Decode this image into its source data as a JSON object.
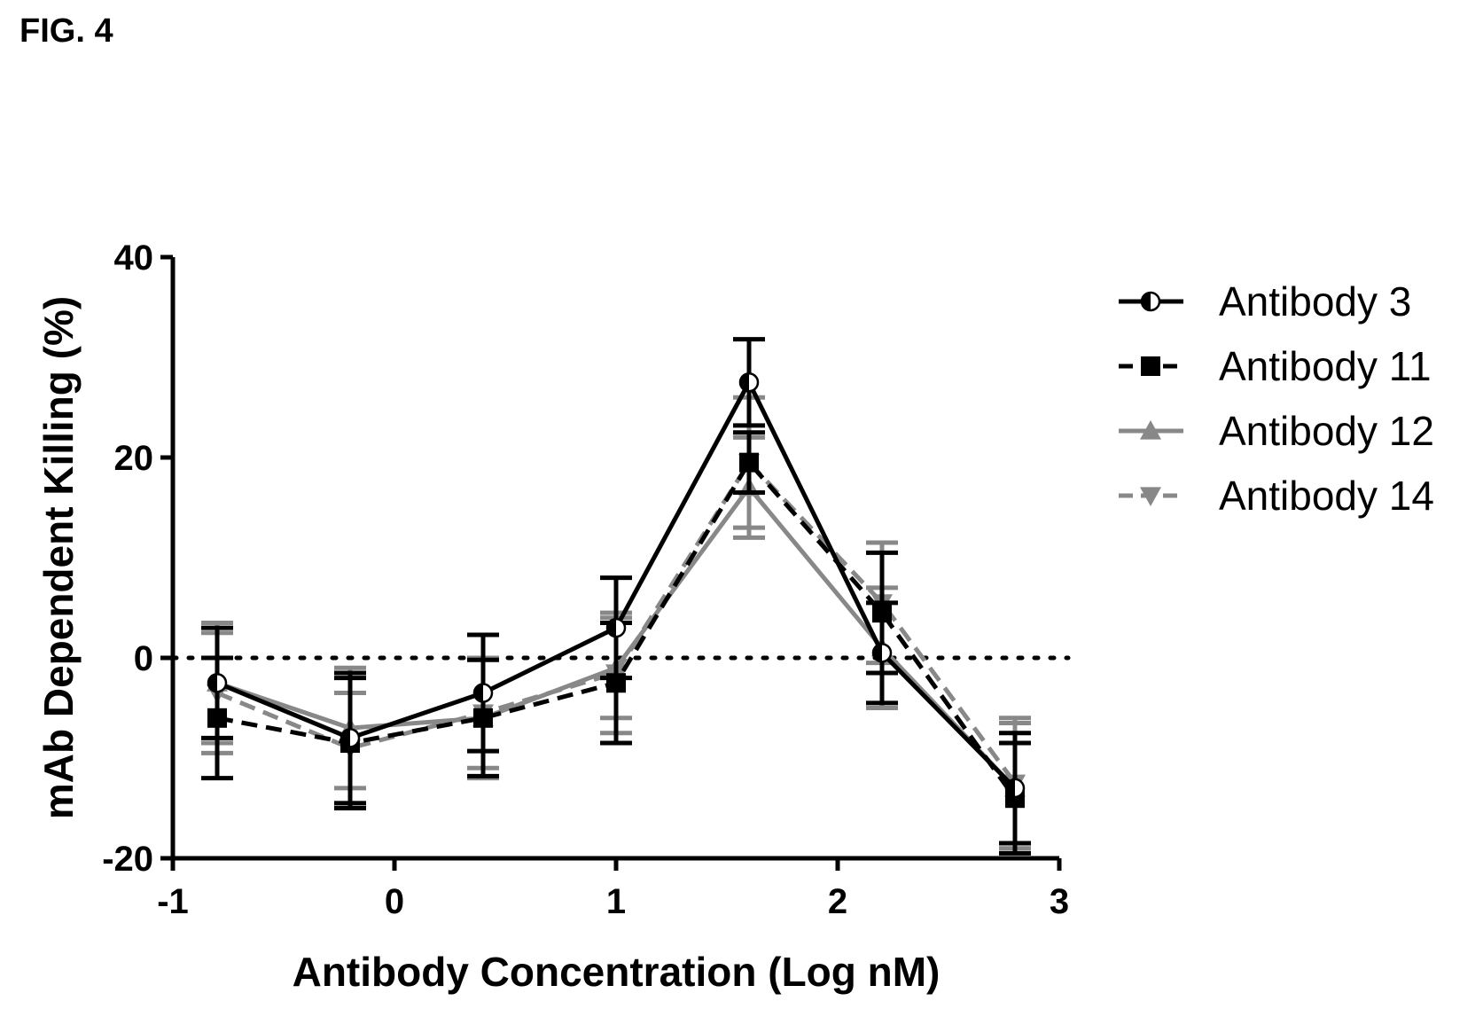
{
  "figure_label": "FIG. 4",
  "chart_data": {
    "type": "line",
    "title": "",
    "xlabel": "Antibody Concentration (Log nM)",
    "ylabel": "mAb Dependent Killing (%)",
    "xlim": [
      -1,
      3
    ],
    "ylim": [
      -20,
      40
    ],
    "xticks": [
      "-1",
      "0",
      "1",
      "2",
      "3"
    ],
    "yticks": [
      "-20",
      "0",
      "20",
      "40"
    ],
    "reference_line": {
      "y": 0,
      "style": "dotted"
    },
    "legend_position": "right",
    "x": [
      -0.8,
      -0.2,
      0.4,
      1.0,
      1.6,
      2.2,
      2.8
    ],
    "series": [
      {
        "name": "Antibody 3",
        "color": "#000000",
        "dash": "solid",
        "marker": "half-circle",
        "values": [
          -2.5,
          -8.0,
          -3.5,
          3.0,
          27.5,
          0.5,
          -13.0
        ],
        "errors": [
          5.5,
          6.5,
          5.8,
          5.0,
          4.3,
          5.0,
          5.5
        ]
      },
      {
        "name": "Antibody 11",
        "color": "#000000",
        "dash": "dashed",
        "marker": "square",
        "values": [
          -6.0,
          -8.5,
          -6.0,
          -2.5,
          19.5,
          4.5,
          -14.0
        ],
        "errors": [
          6.0,
          6.5,
          5.8,
          6.0,
          3.0,
          6.0,
          5.5
        ]
      },
      {
        "name": "Antibody 12",
        "color": "#888888",
        "dash": "solid",
        "marker": "triangle-up",
        "values": [
          -2.5,
          -7.0,
          -6.0,
          -1.0,
          17.0,
          1.0,
          -13.0
        ],
        "errors": [
          6.0,
          6.0,
          6.0,
          5.0,
          5.0,
          6.0,
          6.5
        ]
      },
      {
        "name": "Antibody 14",
        "color": "#888888",
        "dash": "dashed",
        "marker": "triangle-down",
        "values": [
          -3.5,
          -9.0,
          -5.5,
          -1.5,
          19.5,
          5.5,
          -12.5
        ],
        "errors": [
          6.0,
          5.5,
          5.5,
          6.0,
          6.5,
          6.0,
          6.5
        ]
      }
    ]
  }
}
